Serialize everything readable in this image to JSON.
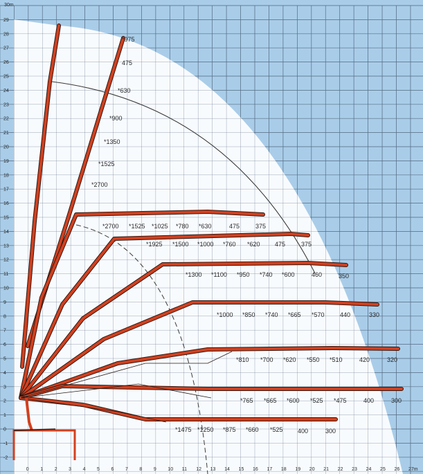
{
  "diagram": {
    "colors": {
      "background": "#a9cde9",
      "grid": "#5b6f86",
      "envelope_fill": "#ffffff",
      "boom": "#d2401f",
      "boom_outline": "#2a1a16",
      "arc": "#3b3b3b",
      "text": "#2a2a2a"
    },
    "y_axis": {
      "unit_label": "30m",
      "ticks": [
        "29",
        "28",
        "27",
        "26",
        "25",
        "24",
        "23",
        "22",
        "21",
        "20",
        "19",
        "18",
        "17",
        "16",
        "15",
        "14",
        "13",
        "12",
        "11",
        "10",
        "9",
        "8",
        "7",
        "6",
        "5",
        "4",
        "3",
        "2",
        "1",
        "0",
        "-1",
        "-2"
      ]
    },
    "x_axis": {
      "ticks": [
        "0",
        "1",
        "2",
        "3",
        "4",
        "5",
        "6",
        "7",
        "8",
        "9",
        "10",
        "11",
        "12",
        "13",
        "14",
        "15",
        "16",
        "17",
        "18",
        "19",
        "20",
        "21",
        "22",
        "23",
        "24",
        "25",
        "26",
        "27m"
      ]
    },
    "load_rows": [
      {
        "name": "vertical-boom",
        "labels": [
          "*975",
          "475",
          "*630",
          "*900",
          "*1350",
          "*1525",
          "*2700"
        ]
      },
      {
        "name": "boom-row-1",
        "labels": [
          "*2700",
          "*1525",
          "*1025",
          "*780",
          "*630",
          "475",
          "375"
        ]
      },
      {
        "name": "boom-row-2",
        "labels": [
          "*1925",
          "*1500",
          "*1000",
          "*760",
          "*620",
          "475",
          "375"
        ]
      },
      {
        "name": "boom-row-3",
        "labels": [
          "*1300",
          "*1100",
          "*950",
          "*740",
          "*600",
          "460",
          "350"
        ]
      },
      {
        "name": "boom-row-4",
        "labels": [
          "*1000",
          "*850",
          "*740",
          "*665",
          "*570",
          "440",
          "330"
        ]
      },
      {
        "name": "boom-row-5",
        "labels": [
          "*810",
          "*700",
          "*620",
          "*550",
          "*510",
          "420",
          "320"
        ]
      },
      {
        "name": "boom-row-6",
        "labels": [
          "*765",
          "*665",
          "*600",
          "*525",
          "*475",
          "400",
          "300"
        ]
      },
      {
        "name": "boom-row-7",
        "labels": [
          "*1475",
          "*1250",
          "*875",
          "*660",
          "*525",
          "400",
          "300"
        ]
      }
    ]
  }
}
